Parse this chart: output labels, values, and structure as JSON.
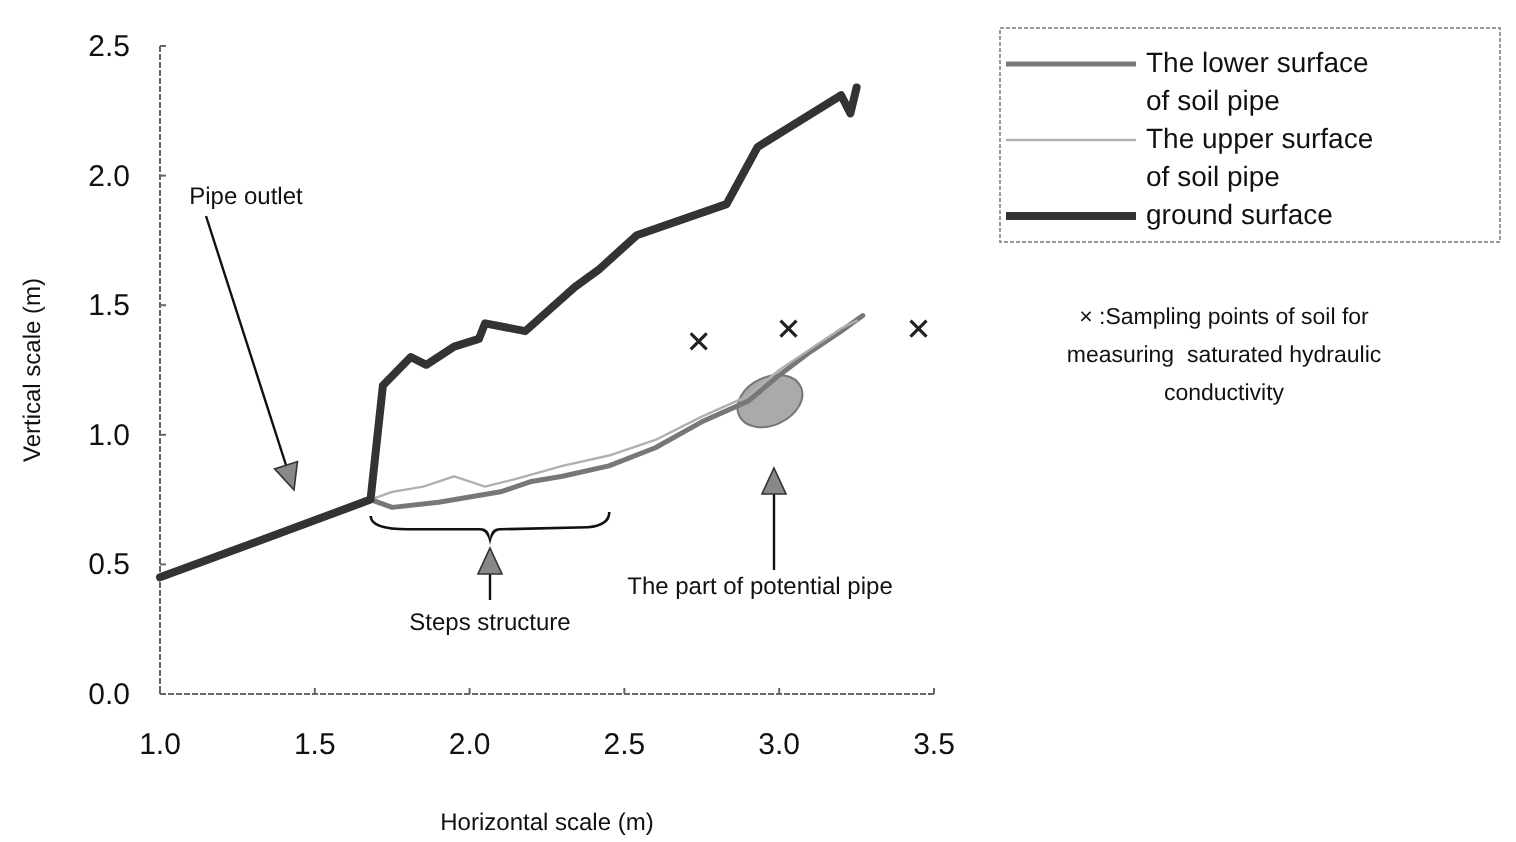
{
  "chart_data": {
    "type": "line",
    "xlabel": "Horizontal scale (m)",
    "ylabel": "Vertical scale (m)",
    "xlim": [
      1.0,
      3.5
    ],
    "ylim": [
      0,
      2.5
    ],
    "xticks": [
      {
        "value": 1.0,
        "label": "1.0"
      },
      1.5,
      {
        "value": 2.0,
        "label": "2.0"
      },
      2.5,
      {
        "value": 3.0,
        "label": "3.0"
      },
      3.5
    ],
    "yticks": [
      {
        "value": 0,
        "label": "0.0"
      },
      0.5,
      {
        "value": 1,
        "label": "1.0"
      },
      1.5,
      {
        "value": 2,
        "label": "2.0"
      },
      2.5
    ],
    "grid": false,
    "legend": "top right",
    "line_style": "solid",
    "marker": "none",
    "series": [
      {
        "name": "The lower surface of soil pipe",
        "color": "#777777",
        "x": [
          1.68,
          1.75,
          1.9,
          2.0,
          2.1,
          2.2,
          2.3,
          2.45,
          2.6,
          2.75,
          2.9,
          3.0,
          3.1,
          3.2,
          3.27
        ],
        "values": [
          0.75,
          0.72,
          0.74,
          0.76,
          0.78,
          0.82,
          0.84,
          0.88,
          0.95,
          1.05,
          1.13,
          1.23,
          1.32,
          1.4,
          1.46
        ]
      },
      {
        "name": "The upper surface of soil pipe",
        "color": "#b0b0b0",
        "x": [
          1.68,
          1.75,
          1.85,
          1.95,
          2.05,
          2.15,
          2.3,
          2.45,
          2.6,
          2.75,
          2.9,
          3.0,
          3.1,
          3.2,
          3.25
        ],
        "values": [
          0.75,
          0.78,
          0.8,
          0.84,
          0.8,
          0.83,
          0.88,
          0.92,
          0.98,
          1.07,
          1.15,
          1.25,
          1.33,
          1.41,
          1.44
        ]
      },
      {
        "name": "ground surface",
        "color": "#333333",
        "x": [
          1.0,
          1.68,
          1.72,
          1.81,
          1.86,
          1.95,
          2.03,
          2.05,
          2.18,
          2.34,
          2.42,
          2.54,
          2.83,
          2.93,
          3.2,
          3.23,
          3.25
        ],
        "values": [
          0.45,
          0.75,
          1.19,
          1.3,
          1.27,
          1.34,
          1.37,
          1.43,
          1.4,
          1.57,
          1.64,
          1.77,
          1.89,
          2.11,
          2.31,
          2.24,
          2.34
        ]
      },
      {
        "type": "scatter",
        "marker": "cross",
        "color": "#222222",
        "x": [
          2.74,
          3.03,
          3.45
        ],
        "values": [
          1.36,
          1.41,
          1.41
        ]
      }
    ],
    "annotations": [
      "Pipe outlet",
      "Steps structure",
      "The part of potential pipe",
      "× :Sampling points of soil for measuring  saturated hydraulic conductivity"
    ]
  }
}
